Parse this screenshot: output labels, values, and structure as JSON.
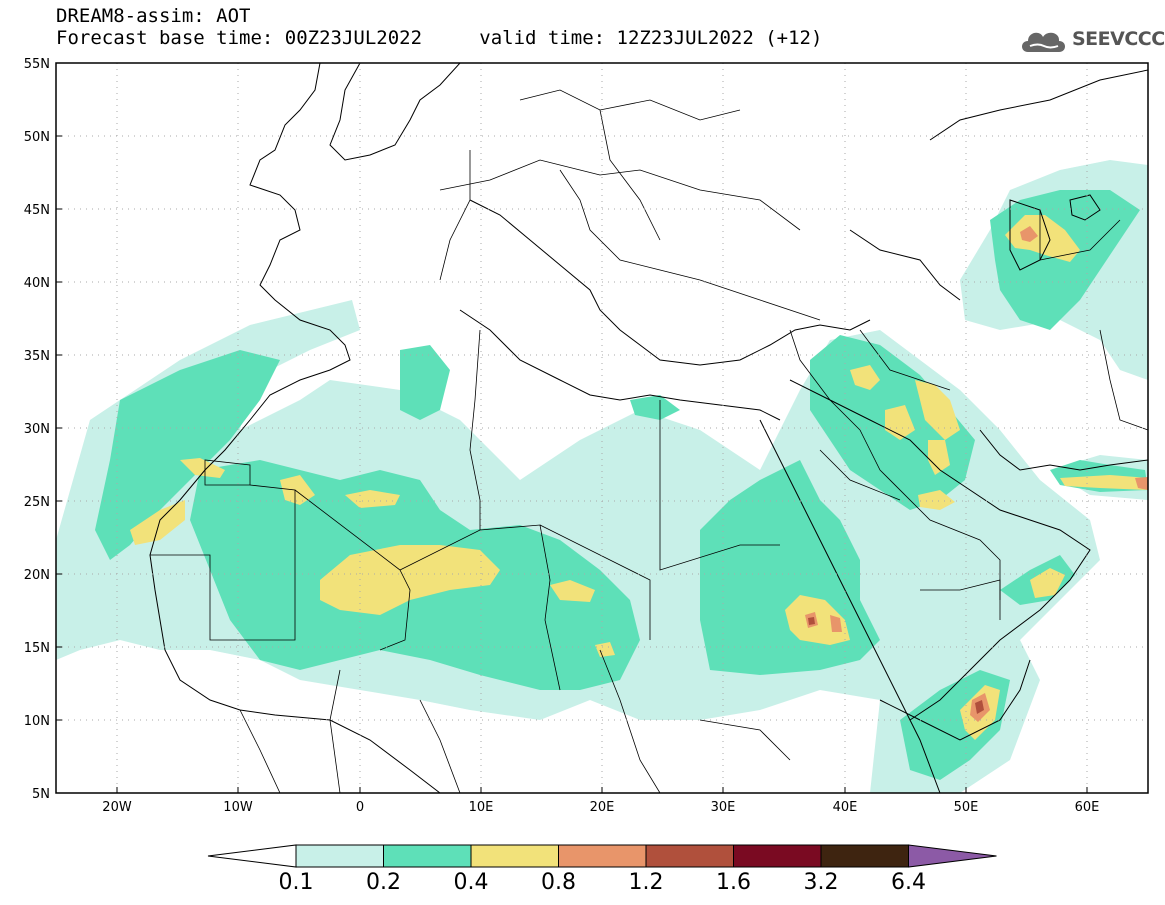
{
  "header": {
    "title": "DREAM8-assim: AOT",
    "base_time_label": "Forecast base time: 00Z23JUL2022",
    "valid_time_label": "valid time: 12Z23JUL2022 (+12)",
    "logo_text": "SEEVCCC",
    "logo_icon": "cloud-icon"
  },
  "map": {
    "lon_range": [
      -25,
      65
    ],
    "lat_range": [
      5,
      55
    ],
    "lat_ticks": [
      "55N",
      "50N",
      "45N",
      "40N",
      "35N",
      "30N",
      "25N",
      "20N",
      "15N",
      "10N",
      "5N"
    ],
    "lon_ticks": [
      "20W",
      "10W",
      "0",
      "10E",
      "20E",
      "30E",
      "40E",
      "50E",
      "60E"
    ],
    "grid": "dotted"
  },
  "colorbar": {
    "labels": [
      "0.1",
      "0.2",
      "0.4",
      "0.8",
      "1.2",
      "1.6",
      "3.2",
      "6.4"
    ],
    "colors": [
      "#ffffff",
      "#c8f0e8",
      "#5ee0b8",
      "#f2e27a",
      "#e8956a",
      "#b0503c",
      "#7a0a22",
      "#3e2410",
      "#8c5aa6"
    ]
  }
}
